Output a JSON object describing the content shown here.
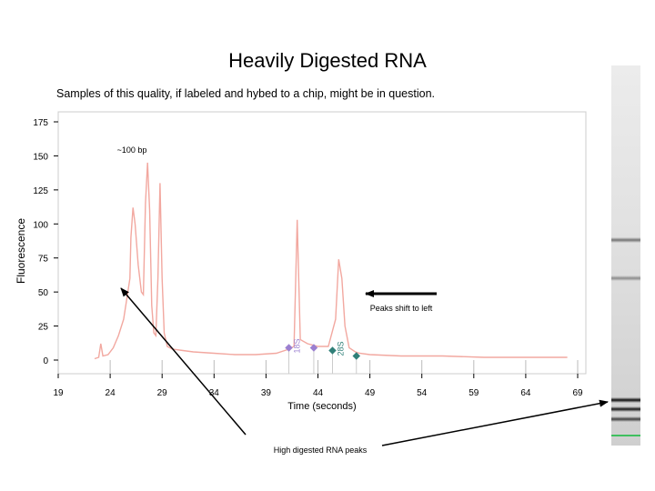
{
  "slide": {
    "title": "Heavily Digested RNA",
    "subtitle": "Samples of this quality, if labeled and hybed to a chip, might be in question."
  },
  "annotations": {
    "size_label": "~100 bp",
    "shift_label": "Peaks shift to left",
    "digested_label": "High digested RNA peaks"
  },
  "colors": {
    "trace": "#f2a8a0",
    "marker_18s": "#9b7fd0",
    "marker_28s": "#2f7f78",
    "axis": "#000000",
    "gel_marker": "#3fbf5f"
  },
  "chart_data": {
    "type": "line",
    "xlabel": "Time (seconds)",
    "ylabel": "Fluorescence",
    "xlim": [
      19,
      69
    ],
    "ylim": [
      -5,
      180
    ],
    "xticks": [
      19,
      24,
      29,
      34,
      39,
      44,
      49,
      54,
      59,
      64,
      69
    ],
    "yticks": [
      0,
      25,
      50,
      75,
      100,
      125,
      150,
      175
    ],
    "grid": false,
    "series": [
      {
        "points": [
          [
            22.5,
            1
          ],
          [
            22.9,
            2
          ],
          [
            23.1,
            12
          ],
          [
            23.3,
            3
          ],
          [
            23.8,
            4
          ],
          [
            24.3,
            9
          ],
          [
            24.8,
            18
          ],
          [
            25.3,
            30
          ],
          [
            25.6,
            45
          ],
          [
            25.9,
            60
          ],
          [
            26.0,
            90
          ],
          [
            26.2,
            112
          ],
          [
            26.4,
            100
          ],
          [
            26.7,
            70
          ],
          [
            27.0,
            50
          ],
          [
            27.2,
            48
          ],
          [
            27.4,
            115
          ],
          [
            27.6,
            145
          ],
          [
            27.8,
            110
          ],
          [
            28.0,
            40
          ],
          [
            28.2,
            20
          ],
          [
            28.4,
            18
          ],
          [
            28.6,
            60
          ],
          [
            28.8,
            130
          ],
          [
            29.0,
            60
          ],
          [
            29.2,
            20
          ],
          [
            29.5,
            10
          ],
          [
            30.0,
            8
          ],
          [
            31.0,
            7
          ],
          [
            32.0,
            6
          ],
          [
            34.0,
            5
          ],
          [
            36.0,
            4
          ],
          [
            38.0,
            4
          ],
          [
            40.0,
            5
          ],
          [
            41.2,
            8
          ],
          [
            41.7,
            10
          ],
          [
            42.0,
            103
          ],
          [
            42.3,
            15
          ],
          [
            43.0,
            12
          ],
          [
            44.0,
            10
          ],
          [
            45.0,
            10
          ],
          [
            45.7,
            30
          ],
          [
            46.0,
            74
          ],
          [
            46.3,
            60
          ],
          [
            46.6,
            25
          ],
          [
            47.0,
            9
          ],
          [
            47.6,
            6
          ],
          [
            48.0,
            5
          ],
          [
            49.0,
            4
          ],
          [
            52.0,
            3
          ],
          [
            56.0,
            3
          ],
          [
            60.0,
            2
          ],
          [
            64.0,
            2
          ],
          [
            68.0,
            2
          ]
        ]
      }
    ],
    "markers": [
      {
        "x": 41.2,
        "y": 9,
        "label": "18S",
        "color": "#9b7fd0"
      },
      {
        "x": 43.6,
        "y": 9,
        "color": "#9b7fd0"
      },
      {
        "x": 45.4,
        "y": 7,
        "label": "28S",
        "color": "#2f7f78"
      },
      {
        "x": 47.7,
        "y": 3,
        "color": "#2f7f78"
      }
    ]
  },
  "gel": {
    "bands": [
      {
        "position": 0.46,
        "intensity": 0.55
      },
      {
        "position": 0.56,
        "intensity": 0.45
      },
      {
        "position": 0.88,
        "intensity": 0.95
      },
      {
        "position": 0.905,
        "intensity": 0.9
      },
      {
        "position": 0.93,
        "intensity": 0.75
      }
    ]
  }
}
